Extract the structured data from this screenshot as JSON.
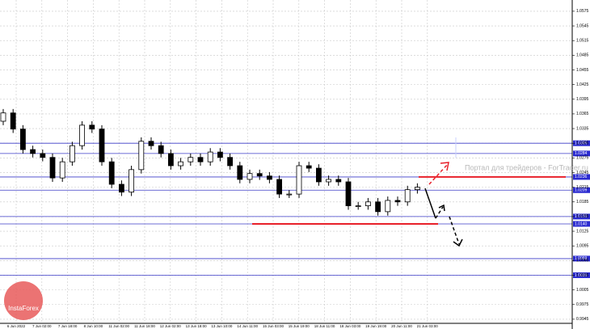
{
  "chart_data": {
    "type": "candlestick",
    "open": [
      1.035,
      1.0367,
      1.0334,
      1.0292,
      1.0284,
      1.0276,
      1.0234,
      1.0267,
      1.03,
      1.0342,
      1.0334,
      1.0267,
      1.0221,
      1.0205,
      1.0251,
      1.0309,
      1.03,
      1.0284,
      1.0259,
      1.0267,
      1.0276,
      1.0267,
      1.0287,
      1.0276,
      1.0259,
      1.0231,
      1.0243,
      1.0238,
      1.0231,
      1.0201,
      1.0201,
      1.0259,
      1.0254,
      1.0226,
      1.0231,
      1.0226,
      1.0177,
      1.0177,
      1.0185,
      1.0165,
      1.0188,
      1.0185,
      1.021
    ],
    "high": [
      1.0375,
      1.0375,
      1.0342,
      1.03,
      1.0292,
      1.0284,
      1.0275,
      1.0308,
      1.035,
      1.035,
      1.0342,
      1.0275,
      1.0229,
      1.0259,
      1.0317,
      1.0317,
      1.0308,
      1.0292,
      1.0275,
      1.0284,
      1.0284,
      1.0295,
      1.0295,
      1.0284,
      1.0267,
      1.0251,
      1.0251,
      1.0246,
      1.0239,
      1.0209,
      1.0267,
      1.0267,
      1.0262,
      1.0239,
      1.0239,
      1.0234,
      1.0185,
      1.0193,
      1.0193,
      1.0196,
      1.0196,
      1.0218,
      1.0223
    ],
    "low": [
      1.0342,
      1.0326,
      1.0284,
      1.0276,
      1.0268,
      1.0226,
      1.0226,
      1.0259,
      1.0292,
      1.0326,
      1.0259,
      1.0213,
      1.0197,
      1.0197,
      1.0243,
      1.0292,
      1.0276,
      1.0251,
      1.0251,
      1.0259,
      1.0259,
      1.0259,
      1.0268,
      1.0251,
      1.0223,
      1.0223,
      1.023,
      1.0223,
      1.0193,
      1.0193,
      1.0193,
      1.0246,
      1.0218,
      1.0218,
      1.0218,
      1.0169,
      1.0169,
      1.0169,
      1.0157,
      1.0157,
      1.0177,
      1.0177,
      1.0202
    ],
    "close": [
      1.0367,
      1.0334,
      1.0292,
      1.0284,
      1.0276,
      1.0234,
      1.0267,
      1.03,
      1.0342,
      1.0334,
      1.0267,
      1.0221,
      1.0205,
      1.0251,
      1.0309,
      1.03,
      1.0284,
      1.0259,
      1.0267,
      1.0276,
      1.0267,
      1.0287,
      1.0276,
      1.0259,
      1.0231,
      1.0243,
      1.0238,
      1.0231,
      1.0201,
      1.0201,
      1.0259,
      1.0254,
      1.0226,
      1.0231,
      1.0226,
      1.0177,
      1.0177,
      1.0185,
      1.0165,
      1.0188,
      1.0185,
      1.021,
      1.0215
    ],
    "ylim": [
      0.9925,
      1.0598
    ],
    "yticks": [
      1.0575,
      1.0545,
      1.0515,
      1.0485,
      1.0455,
      1.0425,
      1.0395,
      1.0365,
      1.0335,
      1.0305,
      1.0275,
      1.0245,
      1.0215,
      1.0185,
      1.0155,
      1.0125,
      1.0095,
      1.0065,
      1.0035,
      1.0005,
      0.9975,
      0.9945
    ],
    "levels": [
      1.0305,
      1.0284,
      1.0236,
      1.0209,
      1.0155,
      {
        "value": 1.014,
        "label": "1.0140"
      },
      1.0069,
      1.0035
    ],
    "red_lines": [
      1.0236,
      1.014
    ],
    "x_labels": [
      "6 Jun 2022",
      "7 Jun 02:00",
      "7 Jun 18:00",
      "8 Jun 10:00",
      "11 Jun 02:00",
      "11 Jun 18:00",
      "12 Jun 02:00",
      "13 Jun 18:00",
      "13 Jun 10:00",
      "14 Jun 11:00",
      "15 Jun 03:00",
      "15 Jun 19:00",
      "18 Jun 11:00",
      "18 Jun 03:00",
      "19 Jun 19:00",
      "20 Jun 11:00",
      "21 Jun 03:00"
    ],
    "grid": true,
    "annotation": "Портал для трейдеров - ForTrader.ru",
    "watermark": "InstaForex"
  }
}
